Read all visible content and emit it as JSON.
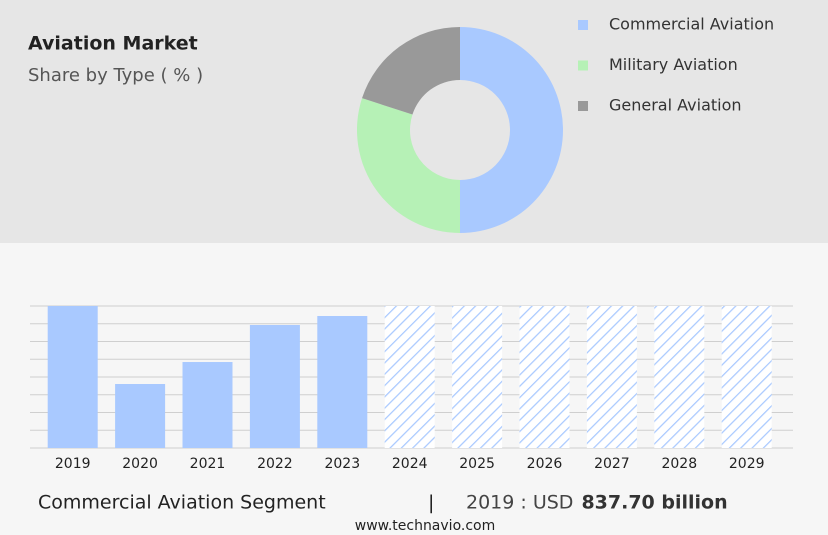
{
  "chart_data": [
    {
      "type": "donut",
      "title": "Aviation Market",
      "subtitle": "Share by Type ( % )",
      "categories": [
        "Commercial Aviation",
        "Military Aviation",
        "General Aviation"
      ],
      "values": [
        50,
        30,
        20
      ],
      "colors": [
        "#a9c9ff",
        "#b6f1b6",
        "#999999"
      ],
      "legend": "right"
    },
    {
      "type": "bar",
      "categories": [
        "2019",
        "2020",
        "2021",
        "2022",
        "2023",
        "2024",
        "2025",
        "2026",
        "2027",
        "2028",
        "2029"
      ],
      "values": [
        837.7,
        377.6,
        507.2,
        725.6,
        778.7,
        null,
        null,
        null,
        null,
        null,
        null
      ],
      "color": "#a9c9ff",
      "ylim": [
        0,
        837.7
      ]
    }
  ],
  "footer": {
    "segment": "Commercial Aviation Segment",
    "separator": "|",
    "year": "2019 : USD",
    "value": "837.70 billion"
  },
  "source": "www.technavio.com"
}
